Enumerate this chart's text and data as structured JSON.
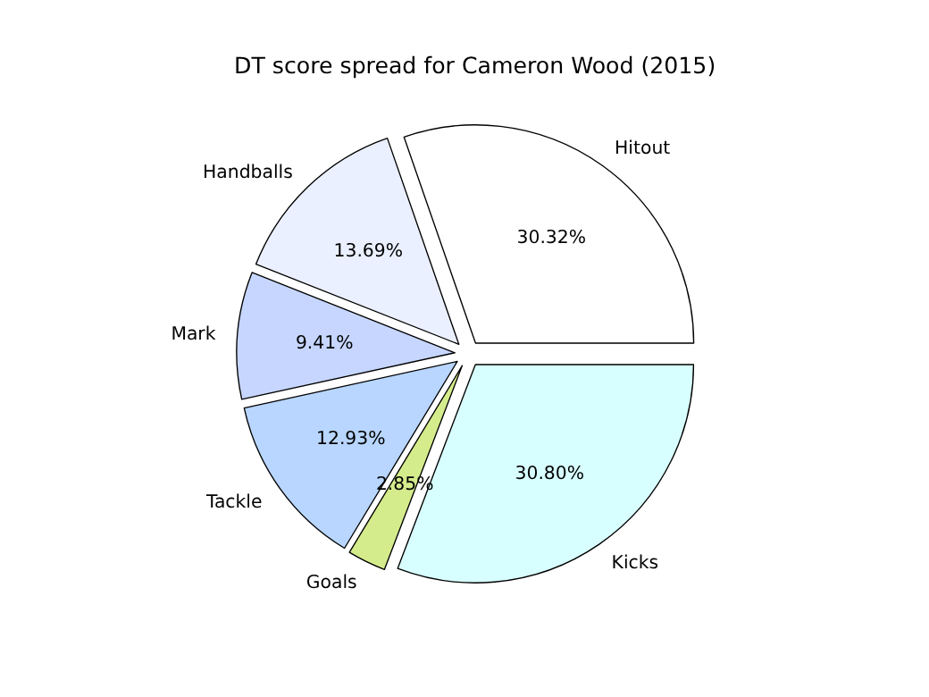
{
  "chart_data": {
    "type": "pie",
    "title": "DT score spread for Cameron Wood (2015)",
    "categories": [
      "Hitout",
      "Handballs",
      "Mark",
      "Tackle",
      "Goals",
      "Kicks"
    ],
    "values": [
      30.32,
      13.69,
      9.41,
      12.93,
      2.85,
      30.8
    ],
    "value_labels": [
      "30.32%",
      "13.69%",
      "9.41%",
      "12.93%",
      "2.85%",
      "30.80%"
    ],
    "colors": [
      "#ffffff",
      "#eaf0ff",
      "#c6d6ff",
      "#b8d6ff",
      "#d4ec8c",
      "#d8ffff"
    ]
  }
}
